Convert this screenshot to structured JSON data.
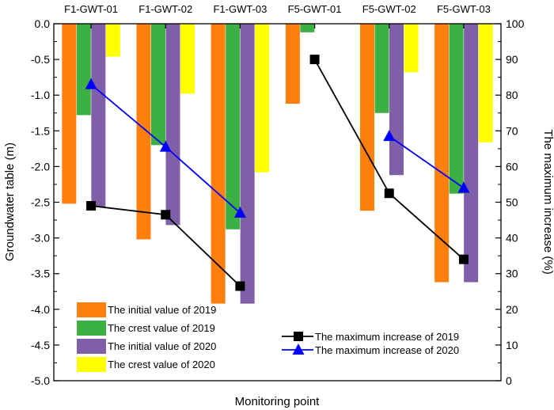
{
  "chart_data": {
    "type": "bar",
    "categories": [
      "F1-GWT-01",
      "F1-GWT-02",
      "F1-GWT-03",
      "F5-GWT-01",
      "F5-GWT-02",
      "F5-GWT-03"
    ],
    "xlabel": "Monitoring point",
    "ylabel": "Groundwater table (m)",
    "ylabel_right": "The maximum increase (%)",
    "ylim": [
      -5.0,
      0.0
    ],
    "ylim_right": [
      0,
      100
    ],
    "yticks": [
      "0.0",
      "-0.5",
      "-1.0",
      "-1.5",
      "-2.0",
      "-2.5",
      "-3.0",
      "-3.5",
      "-4.0",
      "-4.5",
      "-5.0"
    ],
    "yticks_right": [
      "100",
      "90",
      "80",
      "70",
      "60",
      "50",
      "40",
      "30",
      "20",
      "10",
      "0"
    ],
    "grid": false,
    "bar_series": [
      {
        "name": "The initial value of 2019",
        "color": "#ff7f0e",
        "values": [
          -2.52,
          -3.02,
          -3.92,
          -1.12,
          -2.62,
          -3.62
        ]
      },
      {
        "name": "The crest value of 2019",
        "color": "#3cb043",
        "values": [
          -1.28,
          -1.7,
          -2.88,
          -0.12,
          -1.25,
          -2.38
        ]
      },
      {
        "name": "The initial value of 2020",
        "color": "#7f5fa8",
        "values": [
          -2.57,
          -2.82,
          -3.92,
          null,
          -2.12,
          -3.62
        ]
      },
      {
        "name": "The crest value of 2020",
        "color": "#ffff00",
        "values": [
          -0.46,
          -0.98,
          -2.08,
          null,
          -0.68,
          -1.66
        ]
      }
    ],
    "line_series": [
      {
        "name": "The maximum increase of 2019",
        "color": "#000000",
        "marker": "square",
        "axis": "right",
        "segments": [
          {
            "categories": [
              "F1-GWT-01",
              "F1-GWT-02",
              "F1-GWT-03"
            ],
            "values": [
              49,
              46.5,
              26.5
            ]
          },
          {
            "categories": [
              "F5-GWT-01",
              "F5-GWT-02",
              "F5-GWT-03"
            ],
            "values": [
              90,
              52.5,
              34
            ]
          }
        ]
      },
      {
        "name": "The maximum increase of 2020",
        "color": "#0000ff",
        "marker": "triangle",
        "axis": "right",
        "segments": [
          {
            "categories": [
              "F1-GWT-01",
              "F1-GWT-02",
              "F1-GWT-03"
            ],
            "values": [
              83,
              65.5,
              47
            ]
          },
          {
            "categories": [
              "F5-GWT-02",
              "F5-GWT-03"
            ],
            "values": [
              68.5,
              54
            ]
          }
        ]
      }
    ],
    "legend_placement": [
      "bottom-left",
      "bottom-right"
    ]
  }
}
